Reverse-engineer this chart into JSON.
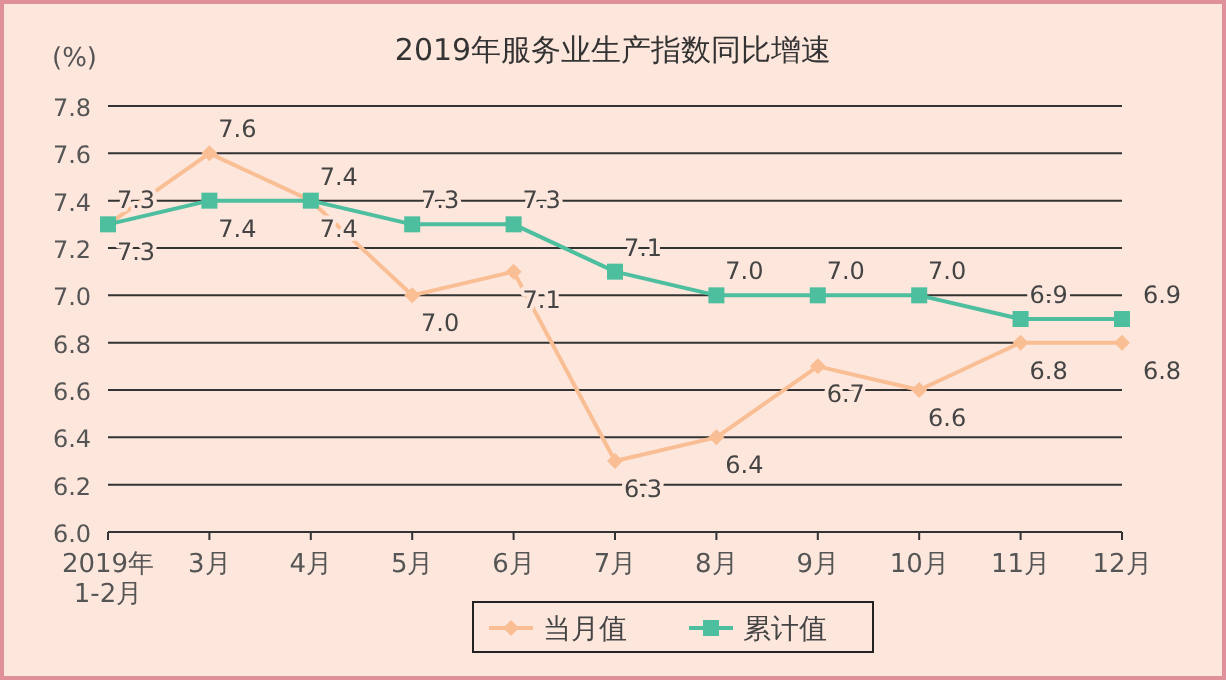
{
  "chart_data": {
    "type": "line",
    "title": "2019年服务业生产指数同比增速",
    "ylabel": "(%)",
    "categories": [
      "2019年\n1-2月",
      "3月",
      "4月",
      "5月",
      "6月",
      "7月",
      "8月",
      "9月",
      "10月",
      "11月",
      "12月"
    ],
    "series": [
      {
        "name": "当月值",
        "color": "#f9be93",
        "marker": "diamond",
        "values": [
          7.3,
          7.6,
          7.4,
          7.0,
          7.1,
          6.3,
          6.4,
          6.7,
          6.6,
          6.8,
          6.8
        ],
        "value_labels": [
          "7.3",
          "7.6",
          "7.4",
          "7.0",
          "7.1",
          "6.3",
          "6.4",
          "6.7",
          "6.6",
          "6.8",
          "6.8"
        ]
      },
      {
        "name": "累计值",
        "color": "#4dbf9f",
        "marker": "square",
        "values": [
          7.3,
          7.4,
          7.4,
          7.3,
          7.3,
          7.1,
          7.0,
          7.0,
          7.0,
          6.9,
          6.9
        ],
        "value_labels": [
          "7.3",
          "7.4",
          "7.4",
          "7.3",
          "7.3",
          "7.1",
          "7.0",
          "7.0",
          "7.0",
          "6.9",
          "6.9"
        ]
      }
    ],
    "ylim": [
      6.0,
      7.8
    ],
    "yticks": [
      {
        "value": 6.0,
        "label": "6.0"
      },
      6.2,
      6.4,
      6.6,
      6.8,
      {
        "value": 7.0,
        "label": "7.0"
      },
      7.2,
      7.4,
      7.6,
      7.8
    ],
    "grid": "y",
    "legend": "bottom"
  }
}
